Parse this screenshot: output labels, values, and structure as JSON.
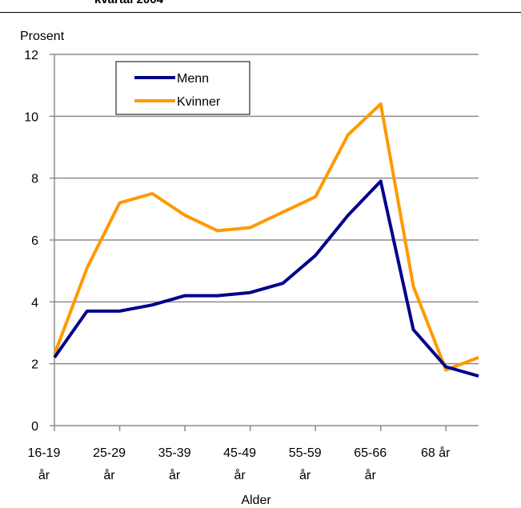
{
  "header": {
    "title": "kvartal 2004"
  },
  "chart_data": {
    "type": "line",
    "ylabel": "Prosent",
    "xlabel": "Alder",
    "ylim": [
      0,
      12
    ],
    "yticks": [
      0,
      2,
      4,
      6,
      8,
      10,
      12
    ],
    "grid": true,
    "legend_position": "top-left",
    "x_tick_labels": [
      {
        "top": "16-19",
        "bottom": "år"
      },
      {
        "top": "25-29",
        "bottom": "år"
      },
      {
        "top": "35-39",
        "bottom": "år"
      },
      {
        "top": "45-49",
        "bottom": "år"
      },
      {
        "top": "55-59",
        "bottom": "år"
      },
      {
        "top": "65-66",
        "bottom": "år"
      },
      {
        "top": "68 år",
        "bottom": ""
      }
    ],
    "series": [
      {
        "name": "Menn",
        "color": "#00008b",
        "values": [
          2.2,
          3.7,
          3.7,
          3.9,
          4.2,
          4.2,
          4.3,
          4.6,
          5.5,
          6.8,
          7.9,
          3.1,
          1.9,
          1.6
        ]
      },
      {
        "name": "Kvinner",
        "color": "#ff9900",
        "values": [
          2.3,
          5.1,
          7.2,
          7.5,
          6.8,
          6.3,
          6.4,
          6.9,
          7.4,
          9.4,
          10.4,
          4.5,
          1.8,
          2.2
        ]
      }
    ]
  }
}
